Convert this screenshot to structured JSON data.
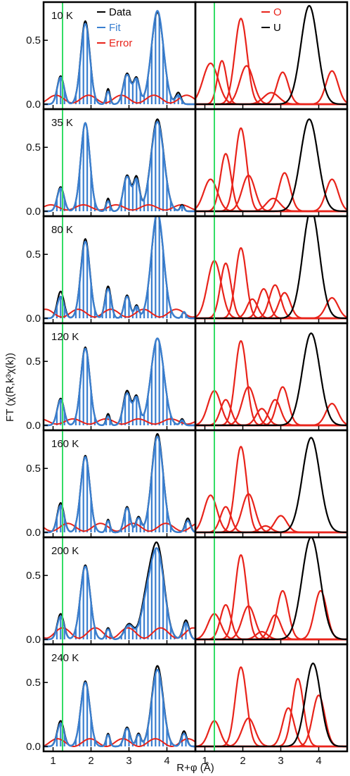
{
  "figure": {
    "ylabel": "FT (χ(R,k³χ(k))",
    "xlabel": "R+φ (Å)",
    "colors": {
      "data": "#000000",
      "fit": "#3a7fd0",
      "error": "#e8231a",
      "O": "#e8231a",
      "U": "#000000",
      "marker": "#33dd66",
      "frame": "#000000"
    }
  },
  "chart_data": {
    "type": "line",
    "layout": "7 rows x 2 columns of panels sharing the x axis",
    "x_axis": {
      "label": "R+φ (Å)",
      "range": [
        0.75,
        4.75
      ],
      "ticks": [
        1,
        2,
        3,
        4
      ],
      "tick_labels": [
        "1",
        "2",
        "3",
        "4"
      ]
    },
    "y_axis": {
      "label": "FT (χ(R,k³χ(k))",
      "range": [
        0,
        0.76
      ],
      "ticks": [
        0.0,
        0.5
      ],
      "tick_labels": [
        "0.0",
        "0.5"
      ]
    },
    "vertical_marker_x": 1.25,
    "left_legend": [
      {
        "name": "Data",
        "color": "#000000"
      },
      {
        "name": "Fit",
        "color": "#3a7fd0"
      },
      {
        "name": "Error",
        "color": "#e8231a"
      }
    ],
    "right_legend": [
      {
        "name": "O",
        "color": "#e8231a"
      },
      {
        "name": "U",
        "color": "#000000"
      }
    ],
    "temperatures": [
      "10 K",
      "35 K",
      "80 K",
      "120  K",
      "160 K",
      "200 K",
      "240 K"
    ],
    "panels": [
      {
        "temperature": "10 K",
        "data_peaks": [
          [
            1.2,
            0.22,
            0.09
          ],
          [
            1.85,
            0.65,
            0.12
          ],
          [
            2.45,
            0.12,
            0.05
          ],
          [
            2.95,
            0.24,
            0.1
          ],
          [
            3.2,
            0.2,
            0.08
          ],
          [
            3.75,
            0.72,
            0.16
          ],
          [
            4.3,
            0.09,
            0.07
          ]
        ],
        "fit_peaks": [
          [
            1.2,
            0.21,
            0.09
          ],
          [
            1.85,
            0.63,
            0.12
          ],
          [
            2.45,
            0.1,
            0.05
          ],
          [
            2.95,
            0.23,
            0.1
          ],
          [
            3.2,
            0.19,
            0.08
          ],
          [
            3.75,
            0.73,
            0.16
          ],
          [
            4.3,
            0.07,
            0.07
          ]
        ],
        "fit_stick_spacing": 0.1,
        "error_baseline": 0.04,
        "error_amplitude": 0.03,
        "O_shells": [
          [
            1.15,
            0.32,
            0.2
          ],
          [
            1.45,
            0.34,
            0.12
          ],
          [
            1.95,
            0.67,
            0.16
          ],
          [
            2.1,
            0.3,
            0.18
          ],
          [
            2.75,
            0.09,
            0.2
          ],
          [
            3.05,
            0.25,
            0.15
          ],
          [
            4.35,
            0.26,
            0.16
          ]
        ],
        "U_shells": [
          [
            3.75,
            0.77,
            0.22
          ]
        ]
      },
      {
        "temperature": "35 K",
        "data_peaks": [
          [
            1.2,
            0.19,
            0.09
          ],
          [
            1.85,
            0.69,
            0.12
          ],
          [
            2.45,
            0.1,
            0.05
          ],
          [
            2.95,
            0.28,
            0.1
          ],
          [
            3.2,
            0.26,
            0.08
          ],
          [
            3.75,
            0.72,
            0.17
          ],
          [
            4.4,
            0.05,
            0.05
          ]
        ],
        "fit_peaks": [
          [
            1.2,
            0.18,
            0.09
          ],
          [
            1.85,
            0.69,
            0.12
          ],
          [
            2.45,
            0.08,
            0.05
          ],
          [
            2.95,
            0.27,
            0.1
          ],
          [
            3.2,
            0.24,
            0.08
          ],
          [
            3.75,
            0.7,
            0.17
          ],
          [
            4.4,
            0.04,
            0.05
          ]
        ],
        "fit_stick_spacing": 0.1,
        "error_baseline": 0.03,
        "error_amplitude": 0.02,
        "O_shells": [
          [
            1.15,
            0.25,
            0.18
          ],
          [
            1.55,
            0.45,
            0.14
          ],
          [
            1.95,
            0.65,
            0.15
          ],
          [
            2.15,
            0.28,
            0.17
          ],
          [
            2.8,
            0.1,
            0.18
          ],
          [
            3.1,
            0.3,
            0.15
          ],
          [
            4.35,
            0.25,
            0.16
          ]
        ],
        "U_shells": [
          [
            3.75,
            0.72,
            0.23
          ]
        ]
      },
      {
        "temperature": "80 K",
        "data_peaks": [
          [
            1.2,
            0.21,
            0.09
          ],
          [
            1.85,
            0.62,
            0.12
          ],
          [
            2.45,
            0.25,
            0.08
          ],
          [
            2.95,
            0.18,
            0.08
          ],
          [
            3.2,
            0.1,
            0.06
          ],
          [
            3.75,
            0.82,
            0.16
          ],
          [
            4.45,
            0.05,
            0.05
          ]
        ],
        "fit_peaks": [
          [
            1.2,
            0.17,
            0.09
          ],
          [
            1.85,
            0.6,
            0.12
          ],
          [
            2.45,
            0.23,
            0.08
          ],
          [
            2.95,
            0.17,
            0.08
          ],
          [
            3.2,
            0.09,
            0.06
          ],
          [
            3.75,
            0.83,
            0.16
          ],
          [
            4.45,
            0.05,
            0.05
          ]
        ],
        "fit_stick_spacing": 0.1,
        "error_baseline": 0.04,
        "error_amplitude": 0.03,
        "O_shells": [
          [
            1.25,
            0.45,
            0.18
          ],
          [
            1.55,
            0.43,
            0.14
          ],
          [
            1.95,
            0.55,
            0.14
          ],
          [
            2.25,
            0.15,
            0.14
          ],
          [
            2.55,
            0.23,
            0.14
          ],
          [
            2.85,
            0.26,
            0.15
          ],
          [
            3.1,
            0.2,
            0.15
          ],
          [
            4.35,
            0.16,
            0.16
          ]
        ],
        "U_shells": [
          [
            3.8,
            0.85,
            0.22
          ]
        ]
      },
      {
        "temperature": "120  K",
        "data_peaks": [
          [
            1.2,
            0.21,
            0.09
          ],
          [
            1.85,
            0.61,
            0.12
          ],
          [
            2.45,
            0.09,
            0.05
          ],
          [
            2.95,
            0.27,
            0.1
          ],
          [
            3.2,
            0.22,
            0.08
          ],
          [
            3.75,
            0.68,
            0.17
          ],
          [
            4.4,
            0.05,
            0.05
          ]
        ],
        "fit_peaks": [
          [
            1.2,
            0.2,
            0.09
          ],
          [
            1.85,
            0.6,
            0.12
          ],
          [
            2.45,
            0.07,
            0.05
          ],
          [
            2.95,
            0.25,
            0.1
          ],
          [
            3.2,
            0.21,
            0.08
          ],
          [
            3.75,
            0.68,
            0.17
          ],
          [
            4.4,
            0.04,
            0.05
          ]
        ],
        "fit_stick_spacing": 0.1,
        "error_baseline": 0.03,
        "error_amplitude": 0.02,
        "O_shells": [
          [
            1.25,
            0.27,
            0.17
          ],
          [
            1.55,
            0.2,
            0.14
          ],
          [
            1.95,
            0.66,
            0.15
          ],
          [
            2.15,
            0.3,
            0.17
          ],
          [
            2.5,
            0.13,
            0.15
          ],
          [
            2.85,
            0.2,
            0.15
          ],
          [
            3.05,
            0.3,
            0.15
          ],
          [
            4.35,
            0.17,
            0.16
          ]
        ],
        "U_shells": [
          [
            3.8,
            0.72,
            0.23
          ]
        ]
      },
      {
        "temperature": "160 K",
        "data_peaks": [
          [
            1.2,
            0.23,
            0.09
          ],
          [
            1.85,
            0.6,
            0.12
          ],
          [
            2.45,
            0.1,
            0.05
          ],
          [
            2.95,
            0.2,
            0.08
          ],
          [
            3.25,
            0.12,
            0.07
          ],
          [
            3.75,
            0.77,
            0.15
          ],
          [
            4.55,
            0.11,
            0.07
          ]
        ],
        "fit_peaks": [
          [
            1.2,
            0.21,
            0.09
          ],
          [
            1.85,
            0.59,
            0.12
          ],
          [
            2.45,
            0.09,
            0.05
          ],
          [
            2.95,
            0.19,
            0.08
          ],
          [
            3.25,
            0.11,
            0.07
          ],
          [
            3.75,
            0.75,
            0.15
          ],
          [
            4.55,
            0.09,
            0.07
          ]
        ],
        "fit_stick_spacing": 0.1,
        "error_baseline": 0.04,
        "error_amplitude": 0.03,
        "O_shells": [
          [
            1.15,
            0.29,
            0.17
          ],
          [
            1.55,
            0.2,
            0.14
          ],
          [
            1.95,
            0.67,
            0.15
          ],
          [
            2.15,
            0.3,
            0.17
          ],
          [
            2.6,
            0.05,
            0.15
          ],
          [
            3.0,
            0.13,
            0.16
          ]
        ],
        "U_shells": [
          [
            3.8,
            0.74,
            0.23
          ]
        ]
      },
      {
        "temperature": "200 K",
        "data_peaks": [
          [
            1.2,
            0.2,
            0.09
          ],
          [
            1.85,
            0.58,
            0.13
          ],
          [
            2.45,
            0.09,
            0.06
          ],
          [
            3.0,
            0.12,
            0.12
          ],
          [
            3.45,
            0.25,
            0.15
          ],
          [
            3.75,
            0.72,
            0.18
          ],
          [
            4.5,
            0.15,
            0.08
          ]
        ],
        "fit_peaks": [
          [
            1.2,
            0.18,
            0.09
          ],
          [
            1.85,
            0.57,
            0.13
          ],
          [
            2.45,
            0.08,
            0.06
          ],
          [
            3.0,
            0.11,
            0.12
          ],
          [
            3.45,
            0.22,
            0.15
          ],
          [
            3.75,
            0.68,
            0.18
          ],
          [
            4.5,
            0.13,
            0.08
          ]
        ],
        "fit_stick_spacing": 0.1,
        "error_baseline": 0.05,
        "error_amplitude": 0.04,
        "O_shells": [
          [
            1.25,
            0.2,
            0.17
          ],
          [
            1.55,
            0.27,
            0.14
          ],
          [
            1.95,
            0.66,
            0.15
          ],
          [
            2.15,
            0.26,
            0.17
          ],
          [
            2.5,
            0.06,
            0.15
          ],
          [
            2.85,
            0.19,
            0.15
          ],
          [
            3.05,
            0.38,
            0.15
          ],
          [
            4.05,
            0.38,
            0.16
          ]
        ],
        "U_shells": [
          [
            3.8,
            0.8,
            0.24
          ]
        ]
      },
      {
        "temperature": "240 K",
        "data_peaks": [
          [
            1.2,
            0.2,
            0.09
          ],
          [
            1.85,
            0.51,
            0.12
          ],
          [
            2.45,
            0.1,
            0.05
          ],
          [
            2.95,
            0.15,
            0.08
          ],
          [
            3.25,
            0.1,
            0.06
          ],
          [
            3.75,
            0.63,
            0.15
          ],
          [
            4.45,
            0.12,
            0.07
          ]
        ],
        "fit_peaks": [
          [
            1.2,
            0.18,
            0.09
          ],
          [
            1.85,
            0.5,
            0.12
          ],
          [
            2.45,
            0.09,
            0.05
          ],
          [
            2.95,
            0.14,
            0.08
          ],
          [
            3.25,
            0.09,
            0.06
          ],
          [
            3.75,
            0.6,
            0.15
          ],
          [
            4.45,
            0.1,
            0.07
          ]
        ],
        "fit_stick_spacing": 0.1,
        "error_baseline": 0.03,
        "error_amplitude": 0.03,
        "O_shells": [
          [
            1.25,
            0.2,
            0.15
          ],
          [
            1.95,
            0.62,
            0.15
          ],
          [
            2.15,
            0.22,
            0.17
          ],
          [
            3.2,
            0.3,
            0.15
          ],
          [
            3.45,
            0.53,
            0.15
          ],
          [
            4.0,
            0.4,
            0.16
          ]
        ],
        "U_shells": [
          [
            3.85,
            0.65,
            0.2
          ]
        ]
      }
    ]
  }
}
